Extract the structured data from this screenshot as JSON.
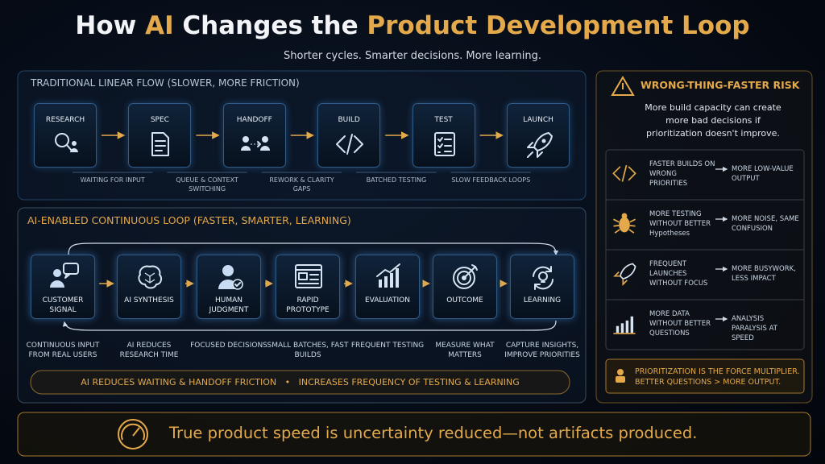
{
  "header": {
    "title": [
      {
        "text": "How ",
        "highlight": false
      },
      {
        "text": "AI",
        "highlight": true
      },
      {
        "text": " Changes the ",
        "highlight": false
      },
      {
        "text": "Product Development Loop",
        "highlight": true
      }
    ],
    "subtitle": "Shorter cycles. Smarter decisions. More learning."
  },
  "traditional": {
    "title": "TRADITIONAL LINEAR FLOW (SLOWER, MORE FRICTION)",
    "steps": [
      "RESEARCH",
      "SPEC",
      "HANDOFF",
      "BUILD",
      "TEST",
      "LAUNCH"
    ],
    "frictions": [
      "WAITING FOR INPUT",
      "QUEUE & CONTEXT SWITCHING",
      "REWORK & CLARITY GAPS",
      "BATCHED TESTING",
      "SLOW FEEDBACK LOOPS"
    ]
  },
  "loop": {
    "title": "AI-ENABLED CONTINUOUS LOOP (FASTER, SMARTER, LEARNING)",
    "steps": [
      "CUSTOMER SIGNAL",
      "AI SYNTHESIS",
      "HUMAN JUDGMENT",
      "RAPID PROTOTYPE",
      "EVALUATION",
      "OUTCOME",
      "LEARNING"
    ],
    "captions": [
      "CONTINUOUS INPUT FROM REAL USERS",
      "AI REDUCES RESEARCH TIME",
      "FOCUSED DECISIONS",
      "SMALL BATCHES, FAST BUILDS",
      "FREQUENT TESTING",
      "MEASURE WHAT MATTERS",
      "CAPTURE INSIGHTS, IMPROVE PRIORITIES"
    ],
    "banner": [
      "AI REDUCES WAITING & HANDOFF FRICTION",
      "INCREASES FREQUENCY OF TESTING & LEARNING"
    ],
    "banner_separator": "•"
  },
  "risk": {
    "title": "WRONG-THING-FASTER RISK",
    "description": "More build capacity can create more bad decisions if prioritization doesn't improve.",
    "rows": [
      {
        "cause": "FASTER BUILDS ON WRONG PRIORITIES",
        "effect": "MORE LOW-VALUE OUTPUT"
      },
      {
        "cause": "MORE TESTING WITHOUT BETTER Hypotheses",
        "effect": "MORE NOISE, SAME CONFUSION"
      },
      {
        "cause": "FREQUENT LAUNCHES WITHOUT FOCUS",
        "effect": "MORE BUSYWORK, LESS IMPACT"
      },
      {
        "cause": "MORE DATA WITHOUT BETTER QUESTIONS",
        "effect": "ANALYSIS PARALYSIS AT SPEED"
      }
    ],
    "note": [
      "PRIORITIZATION IS THE FORCE MULTIPLIER.",
      "BETTER QUESTIONS > MORE OUTPUT."
    ]
  },
  "footer": "True product speed is uncertainty reduced—not artifacts produced."
}
